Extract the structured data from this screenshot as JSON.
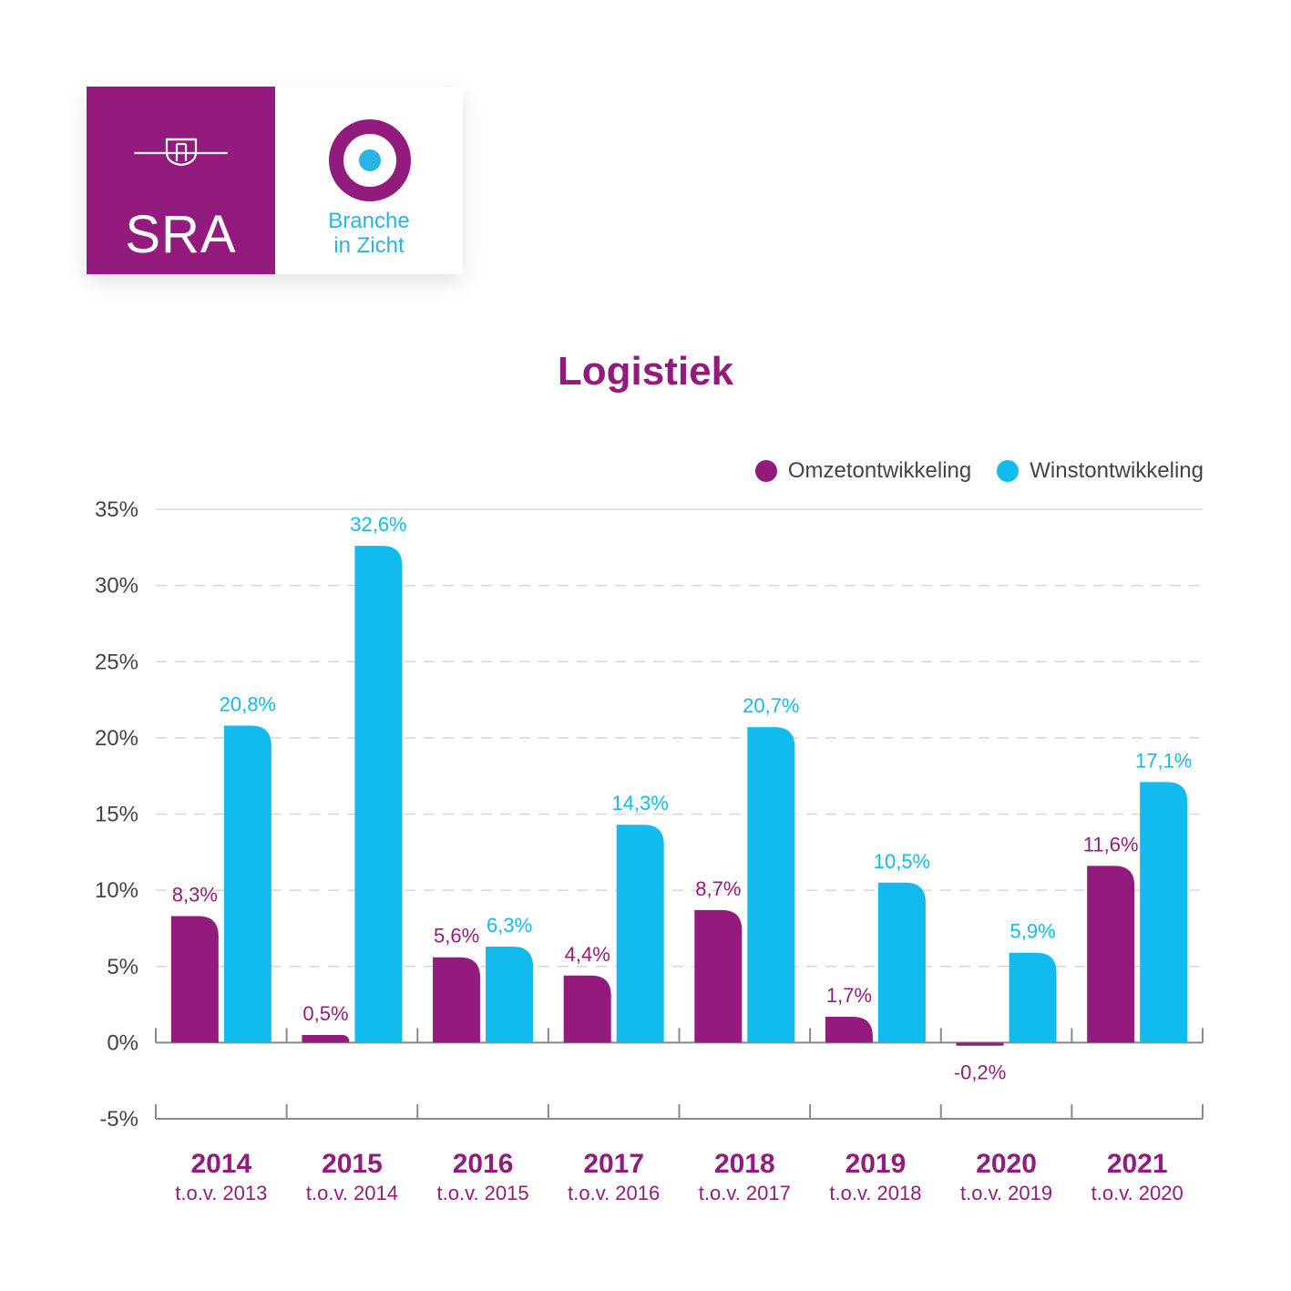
{
  "logo": {
    "brand": "SRA",
    "tagline_line1": "Branche",
    "tagline_line2": "in Zicht"
  },
  "colors": {
    "purple": "#931b7e",
    "blue": "#12bbee",
    "grid": "#d6d6d6",
    "axis_text": "#444444"
  },
  "chart_data": {
    "type": "bar",
    "title": "Logistiek",
    "categories": [
      "2014",
      "2015",
      "2016",
      "2017",
      "2018",
      "2019",
      "2020",
      "2021"
    ],
    "category_sublabels": [
      "t.o.v. 2013",
      "t.o.v. 2014",
      "t.o.v. 2015",
      "t.o.v. 2016",
      "t.o.v. 2017",
      "t.o.v. 2018",
      "t.o.v. 2019",
      "t.o.v. 2020"
    ],
    "series": [
      {
        "name": "Omzetontwikkeling",
        "color": "#931b7e",
        "values": [
          8.3,
          0.5,
          5.6,
          4.4,
          8.7,
          1.7,
          -0.2,
          11.6
        ],
        "labels": [
          "8,3%",
          "0,5%",
          "5,6%",
          "4,4%",
          "8,7%",
          "1,7%",
          "-0,2%",
          "11,6%"
        ]
      },
      {
        "name": "Winstontwikkeling",
        "color": "#12bbee",
        "values": [
          20.8,
          32.6,
          6.3,
          14.3,
          20.7,
          10.5,
          5.9,
          17.1
        ],
        "labels": [
          "20,8%",
          "32,6%",
          "6,3%",
          "14,3%",
          "20,7%",
          "10,5%",
          "5,9%",
          "17,1%"
        ]
      }
    ],
    "ylim": [
      -5,
      35
    ],
    "yticks": [
      -5,
      0,
      5,
      10,
      15,
      20,
      25,
      30,
      35
    ],
    "ytick_labels": [
      "-5%",
      "0%",
      "5%",
      "10%",
      "15%",
      "20%",
      "25%",
      "30%",
      "35%"
    ],
    "grid": true,
    "legend_position": "top-right"
  }
}
